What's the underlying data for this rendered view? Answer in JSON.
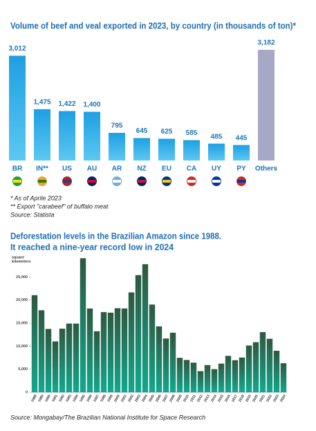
{
  "chart_data": [
    {
      "type": "bar",
      "title": "Volume of beef and veal exported in 2023, by country (in thousands of ton)*",
      "categories": [
        "BR",
        "IN**",
        "US",
        "AU",
        "AR",
        "NZ",
        "EU",
        "CA",
        "UY",
        "PY",
        "Others"
      ],
      "values": [
        3012,
        1475,
        1422,
        1400,
        795,
        645,
        625,
        585,
        485,
        445,
        3182
      ],
      "value_labels": [
        "3,012",
        "1,475",
        "1,422",
        "1,400",
        "795",
        "645",
        "625",
        "585",
        "485",
        "445",
        "3,182"
      ],
      "colors": [
        "#1e9fe2",
        "#1e9fe2",
        "#1e9fe2",
        "#1e9fe2",
        "#1e9fe2",
        "#1e9fe2",
        "#1e9fe2",
        "#1e9fe2",
        "#1e9fe2",
        "#1e9fe2",
        "#a7a7c6"
      ],
      "notes": [
        "* As of Aprile 2023",
        "** Export \"carabeef\" of buffalo meat",
        "Source: Statista"
      ]
    },
    {
      "type": "bar",
      "title": [
        "Deforestation levels in the Brazilian Amazon since 1988.",
        "It reached a nine-year record low in 2024"
      ],
      "ylabel": [
        "square",
        "kilometers"
      ],
      "categories": [
        "1988",
        "1989",
        "1990",
        "1991",
        "1992",
        "1993",
        "1994",
        "1995",
        "1996",
        "1997",
        "1998",
        "1999",
        "2000",
        "2001",
        "2002",
        "2003",
        "2004",
        "2005",
        "2006",
        "2007",
        "2008",
        "2009",
        "2010",
        "2011",
        "2012",
        "2013",
        "2014",
        "2015",
        "2016",
        "2017",
        "2018",
        "2019",
        "2020",
        "2021",
        "2022",
        "2023",
        "2024"
      ],
      "values": [
        21050,
        17770,
        13730,
        11030,
        13786,
        14896,
        14896,
        29059,
        18161,
        13227,
        17383,
        17259,
        18226,
        18165,
        21651,
        25396,
        27772,
        19014,
        14286,
        11651,
        12911,
        7464,
        7000,
        6418,
        4571,
        5891,
        5012,
        6207,
        7893,
        6947,
        7536,
        10129,
        10851,
        13038,
        11594,
        9001,
        6288
      ],
      "colors": [
        "#2d5840",
        "#12a88e"
      ],
      "ylim": [
        0,
        30000
      ],
      "yticks": [
        0,
        {
          "value": 5000,
          "label": "5,000"
        },
        {
          "value": 10000,
          "label": "10,000"
        },
        {
          "value": 15000,
          "label": "15,000"
        },
        {
          "value": 20000,
          "label": "20,000"
        },
        {
          "value": 25000,
          "label": "25,000"
        }
      ],
      "source": "Source: Mongabay/The Brazilian National Institute for Space Research"
    }
  ]
}
